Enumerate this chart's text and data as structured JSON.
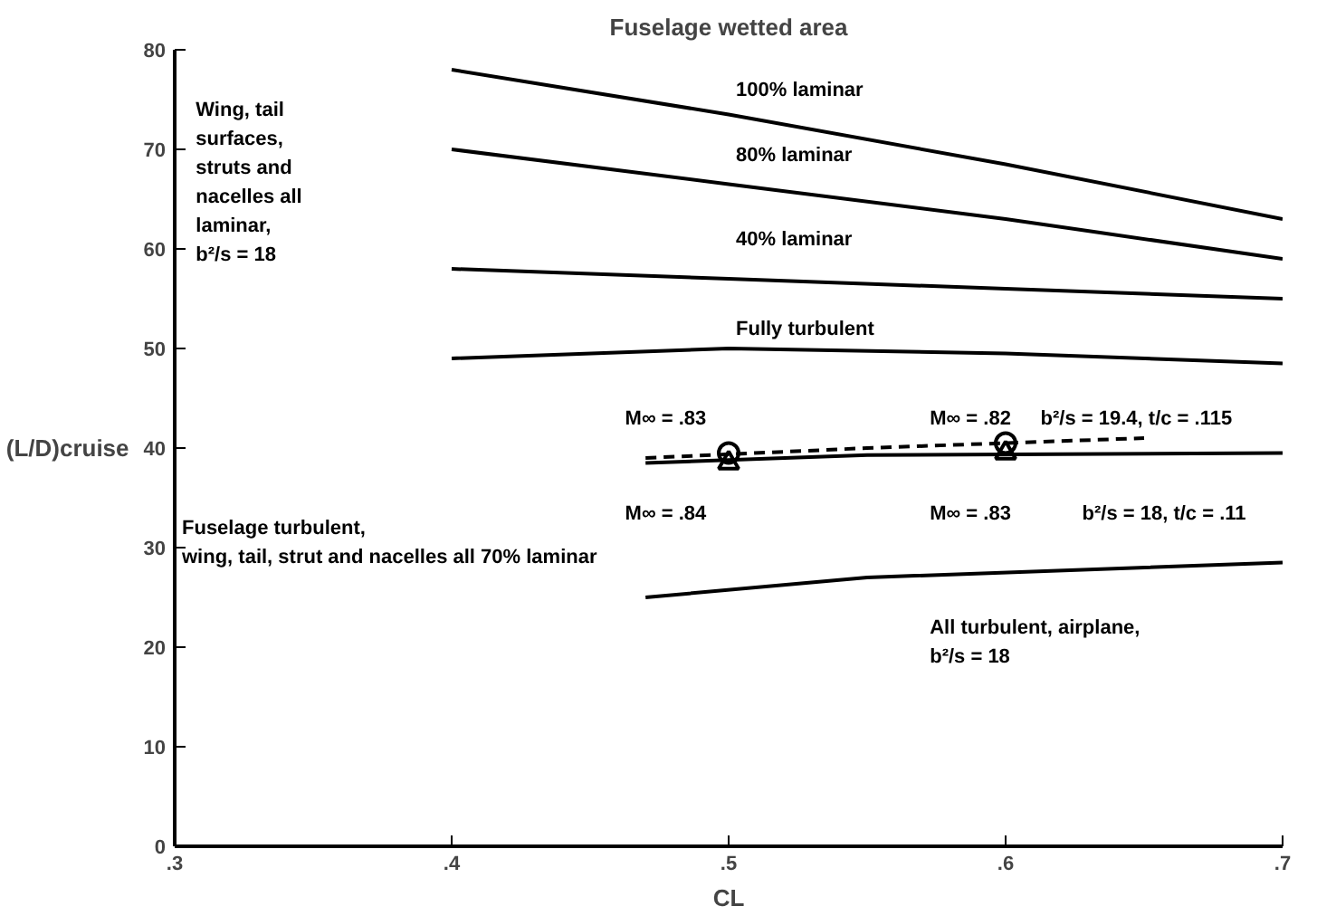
{
  "chart_data": {
    "type": "line",
    "title": "Fuselage wetted area",
    "xlabel": "CL",
    "ylabel": "(L/D)cruise",
    "x": [
      0.4,
      0.5,
      0.6,
      0.7
    ],
    "series": [
      {
        "color": "#000000",
        "values": [
          78,
          73.5,
          68.5,
          63
        ]
      },
      {
        "color": "#000000",
        "values": [
          70,
          66.5,
          63,
          59
        ]
      },
      {
        "color": "#000000",
        "values": [
          58,
          57,
          56,
          55
        ]
      },
      {
        "color": "#000000",
        "values": [
          49,
          50,
          49.5,
          48.5
        ]
      },
      {
        "color": "#000000",
        "x": [
          0.47,
          0.55,
          0.7
        ],
        "values": [
          38.5,
          39.3,
          39.5
        ]
      },
      {
        "color": "#000000",
        "x": [
          0.47,
          0.55,
          0.65
        ],
        "values": [
          39,
          40,
          41
        ],
        "line_style": "dashed"
      },
      {
        "color": "#000000",
        "x": [
          0.47,
          0.55,
          0.7
        ],
        "values": [
          25,
          27,
          28.5
        ]
      },
      {
        "type": "scatter",
        "marker": "circle",
        "color": "#000000",
        "x": [
          0.5,
          0.6
        ],
        "values": [
          39.5,
          40.5
        ]
      },
      {
        "type": "scatter",
        "marker": "triangle",
        "color": "#000000",
        "x": [
          0.5,
          0.6
        ],
        "values": [
          38.5,
          39.5
        ]
      }
    ],
    "xlim": [
      0.3,
      0.7
    ],
    "ylim": [
      0,
      80
    ],
    "xticks": [
      {
        "value": 0.3,
        "label": ".3"
      },
      {
        "value": 0.4,
        "label": ".4"
      },
      {
        "value": 0.5,
        "label": ".5"
      },
      {
        "value": 0.6,
        "label": ".6"
      },
      {
        "value": 0.7,
        "label": ".7"
      }
    ],
    "yticks": [
      0,
      10,
      20,
      30,
      40,
      50,
      60,
      70,
      80
    ],
    "grid": false,
    "line_style": "solid",
    "marker": "none",
    "annotations": [
      "100% laminar",
      "80% laminar",
      "40% laminar",
      "Fully turbulent",
      "Wing, tail\nsurfaces,\nstruts and\nnacelles all\nlaminar,\nb²/s = 18",
      "M∞ = .83",
      "M∞ = .82",
      "M∞ = .84",
      "M∞ = .83",
      "b²/s = 19.4,  t/c = .115",
      "b²/s = 18,  t/c = .11",
      "Fuselage turbulent,\nwing, tail, strut and nacelles all 70% laminar",
      "All turbulent, airplane,\nb²/s = 18"
    ]
  }
}
